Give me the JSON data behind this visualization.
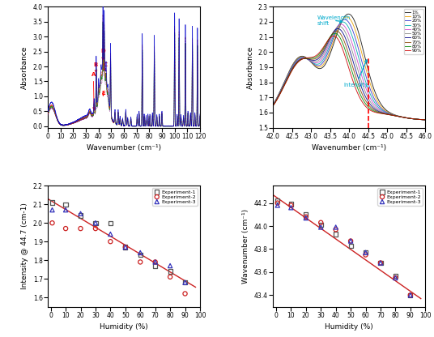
{
  "top_left": {
    "xlabel": "Wavenumber (cm⁻¹)",
    "ylabel": "Absorbance",
    "xlim": [
      0,
      120
    ],
    "ylim": [
      -0.05,
      4.0
    ],
    "yticks": [
      0.0,
      0.5,
      1.0,
      1.5,
      2.0,
      2.5,
      3.0,
      3.5,
      4.0
    ],
    "xticks": [
      0,
      10,
      20,
      30,
      40,
      50,
      60,
      70,
      80,
      90,
      100,
      110,
      120
    ]
  },
  "top_right": {
    "xlabel": "Wavenumber (cm⁻¹)",
    "ylabel": "Absorbance",
    "xlim": [
      42.0,
      46.0
    ],
    "ylim": [
      1.5,
      2.3
    ],
    "yticks": [
      1.5,
      1.6,
      1.7,
      1.8,
      1.9,
      2.0,
      2.1,
      2.2,
      2.3
    ],
    "xticks": [
      42.0,
      42.5,
      43.0,
      43.5,
      44.0,
      44.5,
      45.0,
      45.5,
      46.0
    ],
    "legend_labels": [
      "1%",
      "10%",
      "20%",
      "30%",
      "40%",
      "50%",
      "60%",
      "70%",
      "80%",
      "90%"
    ],
    "colors": [
      "#111111",
      "#e8a000",
      "#3333cc",
      "#00aaaa",
      "#cc44cc",
      "#888888",
      "#000088",
      "#884400",
      "#008800",
      "#cc0000"
    ]
  },
  "bottom_left": {
    "xlabel": "Humidity (%)",
    "ylabel": "Intensity @ 44.7 (cm-1)",
    "xlim": [
      -2,
      100
    ],
    "ylim": [
      1.55,
      2.2
    ],
    "yticks": [
      1.6,
      1.7,
      1.8,
      1.9,
      2.0,
      2.1,
      2.2
    ],
    "xticks": [
      0,
      10,
      20,
      30,
      40,
      50,
      60,
      70,
      80,
      90,
      100
    ],
    "humidity": [
      1,
      10,
      20,
      30,
      40,
      50,
      60,
      70,
      80,
      90
    ],
    "exp1": [
      2.11,
      2.1,
      2.04,
      2.0,
      2.0,
      1.87,
      1.83,
      1.77,
      1.74,
      1.68
    ],
    "exp2": [
      2.0,
      1.97,
      1.97,
      1.97,
      1.9,
      1.87,
      1.79,
      1.79,
      1.71,
      1.62
    ],
    "exp3": [
      2.07,
      2.07,
      2.05,
      2.0,
      1.94,
      1.87,
      1.84,
      1.79,
      1.77,
      1.68
    ],
    "fit_x": [
      -2,
      97
    ],
    "fit_y": [
      2.13,
      1.655
    ],
    "colors": {
      "exp1": "#555555",
      "exp2": "#cc2222",
      "exp3": "#3333bb",
      "fit": "#cc2222"
    }
  },
  "bottom_right": {
    "xlabel": "Humidity (%)",
    "ylabel": "Wavenumber (cm⁻¹)",
    "xlim": [
      -2,
      100
    ],
    "ylim": [
      43.3,
      44.35
    ],
    "yticks": [
      43.4,
      43.6,
      43.8,
      44.0,
      44.2
    ],
    "xticks": [
      0,
      10,
      20,
      30,
      40,
      50,
      60,
      70,
      80,
      90,
      100
    ],
    "humidity": [
      1,
      10,
      20,
      30,
      40,
      50,
      60,
      70,
      80,
      90
    ],
    "exp1": [
      44.22,
      44.19,
      44.1,
      44.01,
      43.93,
      43.83,
      43.77,
      43.68,
      43.57,
      43.4
    ],
    "exp2": [
      44.2,
      44.18,
      44.08,
      44.03,
      43.97,
      43.87,
      43.75,
      43.68,
      43.55,
      43.4
    ],
    "exp3": [
      44.18,
      44.16,
      44.07,
      43.99,
      43.99,
      43.87,
      43.77,
      43.68,
      43.55,
      43.4
    ],
    "fit_x": [
      -2,
      97
    ],
    "fit_y": [
      44.27,
      43.37
    ],
    "colors": {
      "exp1": "#555555",
      "exp2": "#cc2222",
      "exp3": "#3333bb",
      "fit": "#cc2222"
    }
  }
}
